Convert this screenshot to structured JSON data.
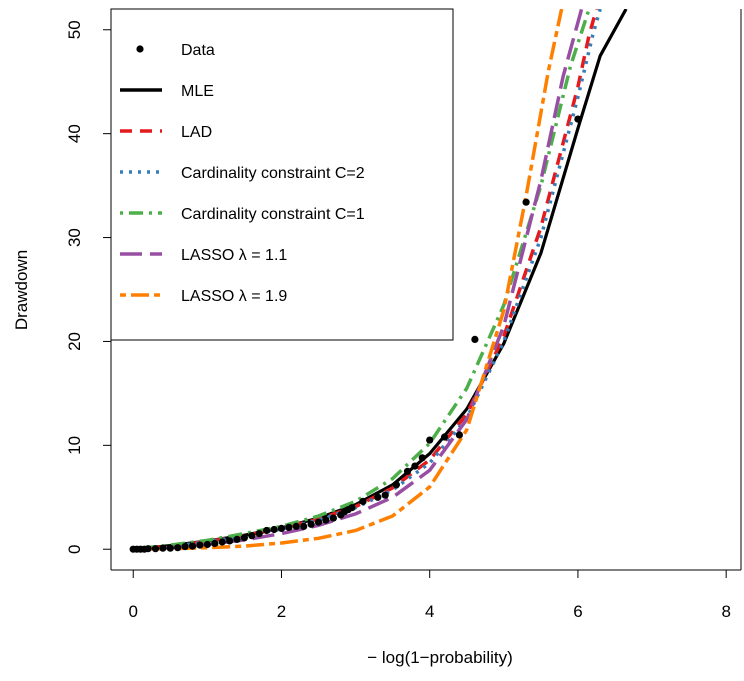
{
  "chart_data": {
    "type": "line",
    "xlabel": "− log(1−probability)",
    "ylabel": "Drawdown",
    "xlim": [
      -0.3,
      8.2
    ],
    "ylim": [
      -2,
      52
    ],
    "xticks": [
      0,
      2,
      4,
      6,
      8
    ],
    "yticks": [
      0,
      10,
      20,
      30,
      40,
      50
    ],
    "xtick_labels": [
      "0",
      "2",
      "4",
      "6",
      "8"
    ],
    "ytick_labels": [
      "0",
      "10",
      "20",
      "30",
      "40",
      "50"
    ],
    "grid": false,
    "legend_position": "top-left",
    "scatter": {
      "name": "Data",
      "color": "#000000",
      "points": [
        [
          0.0,
          0.0
        ],
        [
          0.05,
          0.0
        ],
        [
          0.1,
          0.0
        ],
        [
          0.15,
          0.0
        ],
        [
          0.2,
          0.05
        ],
        [
          0.3,
          0.05
        ],
        [
          0.4,
          0.1
        ],
        [
          0.5,
          0.1
        ],
        [
          0.6,
          0.15
        ],
        [
          0.7,
          0.25
        ],
        [
          0.8,
          0.3
        ],
        [
          0.9,
          0.4
        ],
        [
          1.0,
          0.45
        ],
        [
          1.1,
          0.55
        ],
        [
          1.2,
          0.7
        ],
        [
          1.3,
          0.8
        ],
        [
          1.4,
          0.95
        ],
        [
          1.5,
          1.1
        ],
        [
          1.6,
          1.3
        ],
        [
          1.7,
          1.5
        ],
        [
          1.8,
          1.8
        ],
        [
          1.9,
          1.9
        ],
        [
          2.0,
          2.0
        ],
        [
          2.1,
          2.1
        ],
        [
          2.2,
          2.2
        ],
        [
          2.3,
          2.2
        ],
        [
          2.4,
          2.4
        ],
        [
          2.5,
          2.6
        ],
        [
          2.6,
          2.8
        ],
        [
          2.7,
          3.0
        ],
        [
          2.8,
          3.3
        ],
        [
          2.85,
          3.6
        ],
        [
          2.9,
          3.8
        ],
        [
          2.95,
          4.0
        ],
        [
          3.1,
          4.6
        ],
        [
          3.3,
          5.0
        ],
        [
          3.4,
          5.2
        ],
        [
          3.55,
          6.2
        ],
        [
          3.7,
          7.5
        ],
        [
          3.8,
          8.0
        ],
        [
          3.9,
          8.8
        ],
        [
          4.0,
          10.5
        ],
        [
          4.2,
          10.8
        ],
        [
          4.4,
          11.0
        ],
        [
          4.61,
          20.2
        ],
        [
          5.3,
          33.4
        ],
        [
          6.0,
          41.4
        ]
      ]
    },
    "series": [
      {
        "name": "MLE",
        "color": "#000000",
        "dash": "solid",
        "x": [
          0,
          0.5,
          1,
          1.5,
          2,
          2.5,
          3,
          3.5,
          4,
          4.5,
          5,
          5.5,
          6,
          6.3,
          6.65
        ],
        "y": [
          0,
          0.35,
          0.8,
          1.35,
          2.05,
          3.0,
          4.3,
          6.2,
          9.2,
          13.5,
          19.8,
          28.5,
          40.5,
          47.5,
          52
        ]
      },
      {
        "name": "LAD",
        "color": "#e41a1c",
        "dash": "dashed",
        "x": [
          0,
          0.5,
          1,
          1.5,
          2,
          2.5,
          3,
          3.5,
          4,
          4.5,
          5,
          5.5,
          6,
          6.15,
          6.25
        ],
        "y": [
          0,
          0.3,
          0.75,
          1.3,
          2.0,
          2.9,
          4.1,
          5.9,
          8.6,
          13.0,
          20.5,
          31.0,
          44.5,
          49.5,
          52
        ]
      },
      {
        "name": "Cardinality constraint C=2",
        "color": "#377eb8",
        "dash": "dotted",
        "x": [
          0,
          0.5,
          1,
          1.5,
          2,
          2.5,
          3,
          3.5,
          4,
          4.5,
          5,
          5.5,
          6,
          6.2,
          6.3
        ],
        "y": [
          0,
          0.25,
          0.7,
          1.25,
          1.95,
          2.8,
          4.0,
          5.7,
          8.3,
          12.6,
          20.0,
          30.0,
          43.5,
          49.5,
          52
        ]
      },
      {
        "name": "Cardinality constraint C=1",
        "color": "#4daf4a",
        "dash": "dotdash",
        "x": [
          0,
          0.5,
          1,
          1.5,
          2,
          2.5,
          3,
          3.5,
          4,
          4.5,
          5,
          5.5,
          5.9,
          6.15
        ],
        "y": [
          0,
          0.4,
          0.85,
          1.5,
          2.2,
          3.2,
          4.6,
          6.8,
          10.2,
          15.5,
          23.5,
          35.0,
          46.5,
          52
        ]
      },
      {
        "name": "LASSO λ = 1.1",
        "color": "#984ea3",
        "dash": "longdash",
        "x": [
          0,
          0.5,
          1,
          1.5,
          2,
          2.5,
          3,
          3.5,
          4,
          4.5,
          5,
          5.5,
          5.8,
          6.05
        ],
        "y": [
          0,
          0.15,
          0.45,
          0.9,
          1.5,
          2.3,
          3.4,
          5.0,
          7.6,
          12.5,
          21.5,
          35.5,
          45.5,
          52
        ]
      },
      {
        "name": "LASSO λ = 1.9",
        "color": "#ff7f00",
        "dash": "twodash",
        "x": [
          0,
          0.5,
          1,
          1.5,
          2,
          2.5,
          3,
          3.5,
          4,
          4.5,
          5,
          5.3,
          5.6,
          5.78
        ],
        "y": [
          0,
          0.05,
          0.15,
          0.3,
          0.6,
          1.05,
          1.8,
          3.2,
          6.0,
          11.5,
          23.0,
          34.0,
          46.0,
          52
        ]
      }
    ],
    "legend": [
      {
        "label": "Data",
        "kind": "point",
        "color": "#000000"
      },
      {
        "label": "MLE",
        "kind": "line",
        "color": "#000000",
        "dash": "solid"
      },
      {
        "label": "LAD",
        "kind": "line",
        "color": "#e41a1c",
        "dash": "dashed"
      },
      {
        "label": "Cardinality constraint C=2",
        "kind": "line",
        "color": "#377eb8",
        "dash": "dotted"
      },
      {
        "label": "Cardinality constraint C=1",
        "kind": "line",
        "color": "#4daf4a",
        "dash": "dotdash"
      },
      {
        "label": "LASSO λ = 1.1",
        "kind": "line",
        "color": "#984ea3",
        "dash": "longdash"
      },
      {
        "label": "LASSO λ = 1.9",
        "kind": "line",
        "color": "#ff7f00",
        "dash": "twodash"
      }
    ]
  }
}
